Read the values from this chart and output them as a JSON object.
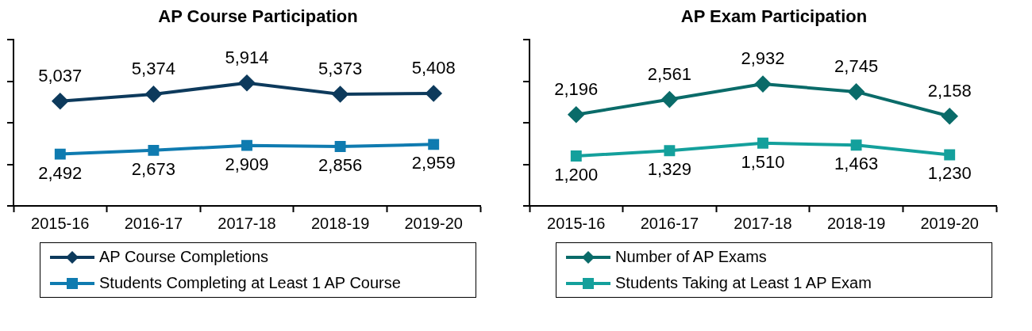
{
  "chart_data": [
    {
      "type": "line",
      "title": "AP Course Participation",
      "categories": [
        "2015-16",
        "2016-17",
        "2017-18",
        "2018-19",
        "2019-20"
      ],
      "series": [
        {
          "name": "AP Course Completions",
          "color": "#0d3a5c",
          "marker": "diamond",
          "values": [
            5037,
            5374,
            5914,
            5373,
            5408
          ],
          "value_labels": [
            "5,037",
            "5,374",
            "5,914",
            "5,373",
            "5,408"
          ]
        },
        {
          "name": "Students Completing at Least 1 AP Course",
          "color": "#0f7bb0",
          "marker": "square",
          "values": [
            2492,
            2673,
            2909,
            2856,
            2959
          ],
          "value_labels": [
            "2,492",
            "2,673",
            "2,909",
            "2,856",
            "2,959"
          ]
        }
      ],
      "legend": "bottom",
      "tick_labels": "x"
    },
    {
      "type": "line",
      "title": "AP Exam Participation",
      "categories": [
        "2015-16",
        "2016-17",
        "2017-18",
        "2018-19",
        "2019-20"
      ],
      "series": [
        {
          "name": "Number of AP Exams",
          "color": "#0a6b69",
          "marker": "diamond",
          "values": [
            2196,
            2561,
            2932,
            2745,
            2158
          ],
          "value_labels": [
            "2,196",
            "2,561",
            "2,932",
            "2,745",
            "2,158"
          ]
        },
        {
          "name": "Students Taking at Least 1 AP Exam",
          "color": "#14a09c",
          "marker": "square",
          "values": [
            1200,
            1329,
            1510,
            1463,
            1230
          ],
          "value_labels": [
            "1,200",
            "1,329",
            "1,510",
            "1,463",
            "1,230"
          ]
        }
      ],
      "legend": "bottom",
      "tick_labels": "x"
    }
  ]
}
